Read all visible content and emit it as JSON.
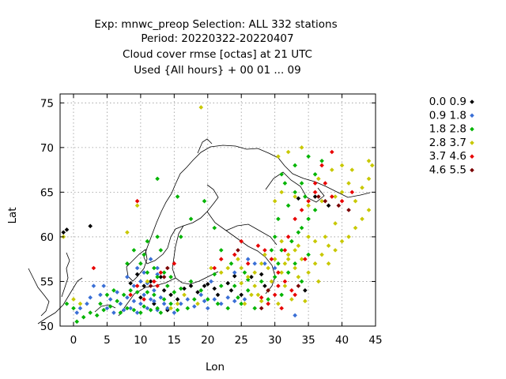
{
  "title_lines": [
    "Exp: mnwc_preop   Selection: ALL    332 stations",
    "Period: 20220322-20220407",
    "Cloud cover rmse [octas] at  21 UTC",
    "Used {All hours} + 00 01 ... 09"
  ],
  "chart_data": {
    "type": "scatter",
    "xlabel": "Lon",
    "ylabel": "Lat",
    "xlim": [
      -2,
      45
    ],
    "ylim": [
      50,
      76
    ],
    "xticks": [
      0,
      5,
      10,
      15,
      20,
      25,
      30,
      35,
      40,
      45
    ],
    "yticks": [
      50,
      55,
      60,
      65,
      70,
      75
    ],
    "grid": true,
    "legend_position": "outside-right",
    "series": [
      {
        "name": "0.0 0.9",
        "color": "#000000",
        "points": [
          [
            -1.5,
            60.5
          ],
          [
            -1.0,
            60.8
          ],
          [
            2.5,
            61.2
          ],
          [
            8.5,
            54.8
          ],
          [
            10.5,
            54.5
          ],
          [
            11.5,
            55.0
          ],
          [
            13.5,
            54.0
          ],
          [
            14.5,
            53.5
          ],
          [
            15.5,
            53.0
          ],
          [
            16.5,
            54.2
          ],
          [
            17.5,
            54.5
          ],
          [
            18.5,
            53.8
          ],
          [
            20.0,
            54.7
          ],
          [
            21.0,
            54.2
          ],
          [
            21.5,
            53.5
          ],
          [
            23.0,
            54.8
          ],
          [
            23.5,
            54.0
          ],
          [
            25.0,
            53.5
          ],
          [
            26.5,
            55.5
          ],
          [
            28.0,
            55.8
          ],
          [
            33.5,
            64.3
          ],
          [
            36.0,
            64.5
          ],
          [
            38.0,
            63.5
          ],
          [
            24.0,
            55.6
          ],
          [
            13.0,
            55.5
          ],
          [
            9.5,
            55.8
          ],
          [
            10.0,
            53.2
          ],
          [
            12.0,
            52.5
          ],
          [
            14.0,
            51.8
          ],
          [
            19.5,
            54.5
          ],
          [
            34.5,
            54.0
          ],
          [
            28.5,
            54.5
          ]
        ]
      },
      {
        "name": "0.9 1.8",
        "color": "#3a6fd6",
        "points": [
          [
            0.5,
            51.5
          ],
          [
            1.0,
            52.0
          ],
          [
            2.0,
            52.5
          ],
          [
            2.5,
            53.2
          ],
          [
            3.0,
            54.5
          ],
          [
            4.0,
            53.5
          ],
          [
            4.5,
            54.5
          ],
          [
            5.0,
            52.0
          ],
          [
            5.5,
            53.0
          ],
          [
            6.0,
            51.5
          ],
          [
            6.5,
            53.8
          ],
          [
            7.0,
            52.5
          ],
          [
            7.5,
            51.8
          ],
          [
            8.0,
            53.2
          ],
          [
            8.5,
            52.0
          ],
          [
            9.0,
            52.8
          ],
          [
            9.5,
            51.5
          ],
          [
            10.0,
            52.5
          ],
          [
            10.5,
            53.5
          ],
          [
            11.0,
            52.0
          ],
          [
            11.5,
            53.0
          ],
          [
            12.0,
            52.8
          ],
          [
            12.5,
            51.8
          ],
          [
            13.0,
            53.2
          ],
          [
            13.5,
            52.5
          ],
          [
            14.0,
            52.0
          ],
          [
            9.0,
            54.5
          ],
          [
            10.0,
            55.0
          ],
          [
            11.0,
            54.8
          ],
          [
            12.0,
            54.0
          ],
          [
            8.0,
            55.5
          ],
          [
            9.5,
            56.5
          ],
          [
            10.5,
            56.0
          ],
          [
            12.5,
            55.8
          ],
          [
            11.5,
            57.5
          ],
          [
            16.0,
            52.5
          ],
          [
            17.0,
            53.0
          ],
          [
            18.0,
            52.2
          ],
          [
            19.0,
            53.5
          ],
          [
            20.0,
            52.0
          ],
          [
            21.0,
            53.0
          ],
          [
            22.0,
            52.5
          ],
          [
            23.0,
            53.2
          ],
          [
            24.0,
            52.8
          ],
          [
            25.5,
            53.0
          ],
          [
            24.0,
            56.0
          ],
          [
            26.0,
            57.5
          ],
          [
            28.5,
            57.0
          ],
          [
            30.0,
            56.5
          ],
          [
            33.0,
            51.2
          ],
          [
            19.5,
            52.8
          ],
          [
            15.0,
            51.5
          ],
          [
            20.5,
            55.0
          ],
          [
            27.0,
            57.0
          ],
          [
            12.5,
            56.5
          ]
        ]
      },
      {
        "name": "1.8 2.8",
        "color": "#00b400",
        "points": [
          [
            0.0,
            52.0
          ],
          [
            1.5,
            51.0
          ],
          [
            2.5,
            51.5
          ],
          [
            3.5,
            51.2
          ],
          [
            4.0,
            52.5
          ],
          [
            4.5,
            51.8
          ],
          [
            5.0,
            53.5
          ],
          [
            5.5,
            52.2
          ],
          [
            6.0,
            54.0
          ],
          [
            6.5,
            52.8
          ],
          [
            7.0,
            51.5
          ],
          [
            7.5,
            53.5
          ],
          [
            8.0,
            52.0
          ],
          [
            8.5,
            54.0
          ],
          [
            9.0,
            51.8
          ],
          [
            9.5,
            53.8
          ],
          [
            10.0,
            51.5
          ],
          [
            10.5,
            52.2
          ],
          [
            11.0,
            53.8
          ],
          [
            11.5,
            51.8
          ],
          [
            12.0,
            53.5
          ],
          [
            12.5,
            52.0
          ],
          [
            13.0,
            51.5
          ],
          [
            13.5,
            53.0
          ],
          [
            14.0,
            54.5
          ],
          [
            14.5,
            52.5
          ],
          [
            15.0,
            53.8
          ],
          [
            15.5,
            51.8
          ],
          [
            16.0,
            54.2
          ],
          [
            17.0,
            52.0
          ],
          [
            18.0,
            53.0
          ],
          [
            19.0,
            54.0
          ],
          [
            20.0,
            53.0
          ],
          [
            21.5,
            52.5
          ],
          [
            22.0,
            54.5
          ],
          [
            23.0,
            52.0
          ],
          [
            24.0,
            54.5
          ],
          [
            25.0,
            52.5
          ],
          [
            26.0,
            54.0
          ],
          [
            27.0,
            52.0
          ],
          [
            28.0,
            55.0
          ],
          [
            29.0,
            53.0
          ],
          [
            30.0,
            55.5
          ],
          [
            31.0,
            53.5
          ],
          [
            32.0,
            56.0
          ],
          [
            33.0,
            57.0
          ],
          [
            34.0,
            55.0
          ],
          [
            35.0,
            58.0
          ],
          [
            31.0,
            58.5
          ],
          [
            32.5,
            59.5
          ],
          [
            33.5,
            60.5
          ],
          [
            34.0,
            61.0
          ],
          [
            35.0,
            62.0
          ],
          [
            36.0,
            63.0
          ],
          [
            32.0,
            63.5
          ],
          [
            30.0,
            60.0
          ],
          [
            30.5,
            62.0
          ],
          [
            33.0,
            65.0
          ],
          [
            34.0,
            66.0
          ],
          [
            36.0,
            67.0
          ],
          [
            37.0,
            68.5
          ],
          [
            35.0,
            69.0
          ],
          [
            31.0,
            67.0
          ],
          [
            33.0,
            68.0
          ],
          [
            10.0,
            57.0
          ],
          [
            11.0,
            56.0
          ],
          [
            12.0,
            56.5
          ],
          [
            13.0,
            58.5
          ],
          [
            12.5,
            60.0
          ],
          [
            11.0,
            59.5
          ],
          [
            10.5,
            58.0
          ],
          [
            9.0,
            58.5
          ],
          [
            8.0,
            57.0
          ],
          [
            16.0,
            60.0
          ],
          [
            17.5,
            62.0
          ],
          [
            19.5,
            64.0
          ],
          [
            21.0,
            61.0
          ],
          [
            12.5,
            66.5
          ],
          [
            15.5,
            64.5
          ],
          [
            22.0,
            58.5
          ],
          [
            23.5,
            57.0
          ],
          [
            25.5,
            56.0
          ],
          [
            29.5,
            58.5
          ],
          [
            30.5,
            57.0
          ],
          [
            -1.0,
            52.5
          ],
          [
            0.5,
            50.5
          ],
          [
            31.5,
            66.0
          ],
          [
            34.5,
            64.5
          ],
          [
            26.0,
            55.2
          ],
          [
            24.5,
            53.2
          ],
          [
            21.0,
            55.8
          ],
          [
            17.5,
            55.0
          ],
          [
            14.5,
            55.5
          ],
          [
            13.5,
            56.0
          ],
          [
            12.5,
            55.5
          ]
        ]
      },
      {
        "name": "2.8 3.7",
        "color": "#c8c800",
        "points": [
          [
            -1.5,
            60.0
          ],
          [
            0.0,
            53.0
          ],
          [
            1.0,
            52.5
          ],
          [
            19.0,
            74.5
          ],
          [
            25.0,
            56.5
          ],
          [
            26.0,
            55.5
          ],
          [
            27.0,
            56.0
          ],
          [
            28.0,
            57.0
          ],
          [
            29.0,
            56.5
          ],
          [
            30.0,
            57.5
          ],
          [
            31.0,
            56.0
          ],
          [
            32.0,
            57.5
          ],
          [
            33.0,
            56.5
          ],
          [
            34.0,
            57.5
          ],
          [
            35.0,
            56.0
          ],
          [
            36.0,
            57.0
          ],
          [
            37.0,
            58.0
          ],
          [
            38.0,
            57.0
          ],
          [
            39.0,
            58.5
          ],
          [
            40.0,
            59.5
          ],
          [
            41.0,
            60.0
          ],
          [
            42.0,
            61.0
          ],
          [
            43.0,
            62.0
          ],
          [
            44.0,
            63.0
          ],
          [
            39.0,
            61.5
          ],
          [
            37.5,
            60.0
          ],
          [
            36.0,
            59.5
          ],
          [
            35.0,
            60.0
          ],
          [
            33.5,
            59.0
          ],
          [
            32.0,
            58.0
          ],
          [
            31.0,
            59.5
          ],
          [
            30.0,
            64.0
          ],
          [
            31.0,
            65.0
          ],
          [
            33.0,
            64.5
          ],
          [
            35.0,
            63.5
          ],
          [
            37.0,
            64.0
          ],
          [
            39.0,
            64.5
          ],
          [
            40.0,
            65.0
          ],
          [
            41.0,
            66.0
          ],
          [
            43.0,
            65.5
          ],
          [
            44.0,
            66.5
          ],
          [
            44.5,
            68.0
          ],
          [
            44.0,
            68.5
          ],
          [
            40.0,
            68.0
          ],
          [
            38.5,
            67.5
          ],
          [
            36.5,
            66.5
          ],
          [
            30.5,
            69.0
          ],
          [
            32.0,
            69.5
          ],
          [
            34.0,
            70.0
          ],
          [
            27.0,
            54.5
          ],
          [
            25.0,
            54.8
          ],
          [
            23.0,
            56.5
          ],
          [
            24.5,
            57.5
          ],
          [
            28.5,
            58.0
          ],
          [
            29.5,
            55.0
          ],
          [
            31.5,
            54.5
          ],
          [
            33.5,
            55.5
          ],
          [
            36.5,
            55.0
          ],
          [
            28.0,
            52.8
          ],
          [
            30.5,
            52.5
          ],
          [
            32.5,
            53.0
          ],
          [
            34.5,
            52.8
          ],
          [
            22.0,
            56.0
          ],
          [
            20.5,
            56.5
          ],
          [
            26.5,
            53.5
          ],
          [
            29.0,
            54.0
          ],
          [
            9.5,
            63.5
          ],
          [
            8.0,
            60.5
          ],
          [
            14.5,
            52.0
          ],
          [
            15.5,
            52.5
          ],
          [
            16.5,
            53.5
          ],
          [
            18.5,
            52.5
          ],
          [
            11.0,
            55.0
          ],
          [
            42.0,
            64.0
          ],
          [
            41.5,
            67.5
          ],
          [
            38.0,
            59.0
          ],
          [
            33.0,
            58.5
          ],
          [
            31.5,
            57.0
          ],
          [
            27.5,
            53.5
          ],
          [
            25.5,
            52.5
          ]
        ]
      },
      {
        "name": "3.7 4.6",
        "color": "#e80000",
        "points": [
          [
            3.0,
            56.5
          ],
          [
            8.5,
            53.5
          ],
          [
            9.5,
            54.5
          ],
          [
            10.5,
            53.0
          ],
          [
            12.5,
            54.5
          ],
          [
            13.0,
            56.0
          ],
          [
            24.0,
            58.0
          ],
          [
            25.0,
            59.5
          ],
          [
            26.0,
            57.0
          ],
          [
            27.5,
            59.0
          ],
          [
            28.5,
            58.5
          ],
          [
            29.5,
            57.5
          ],
          [
            30.5,
            56.0
          ],
          [
            31.5,
            58.5
          ],
          [
            32.0,
            60.0
          ],
          [
            33.0,
            62.0
          ],
          [
            34.0,
            63.0
          ],
          [
            35.0,
            64.0
          ],
          [
            36.0,
            65.0
          ],
          [
            37.5,
            66.0
          ],
          [
            38.5,
            64.5
          ],
          [
            40.0,
            64.0
          ],
          [
            41.5,
            65.0
          ],
          [
            31.5,
            55.0
          ],
          [
            32.5,
            54.0
          ],
          [
            30.0,
            53.5
          ],
          [
            29.0,
            52.5
          ],
          [
            31.0,
            52.0
          ],
          [
            33.0,
            53.5
          ],
          [
            34.5,
            57.5
          ],
          [
            36.0,
            66.0
          ],
          [
            37.0,
            68.0
          ],
          [
            38.5,
            69.5
          ],
          [
            22.0,
            57.5
          ],
          [
            21.0,
            56.5
          ],
          [
            15.0,
            57.0
          ],
          [
            9.5,
            64.0
          ],
          [
            12.0,
            55.0
          ],
          [
            28.0,
            53.2
          ],
          [
            30.5,
            54.5
          ]
        ]
      },
      {
        "name": "4.6 5.5",
        "color": "#7a0000",
        "points": [
          [
            13.5,
            55.5
          ],
          [
            29.0,
            54.0
          ],
          [
            33.5,
            54.5
          ],
          [
            36.5,
            64.5
          ],
          [
            37.5,
            64.0
          ],
          [
            39.5,
            63.5
          ],
          [
            41.0,
            63.0
          ],
          [
            24.5,
            58.5
          ],
          [
            14.0,
            56.5
          ],
          [
            11.5,
            54.5
          ],
          [
            28.0,
            52.0
          ]
        ]
      }
    ]
  }
}
